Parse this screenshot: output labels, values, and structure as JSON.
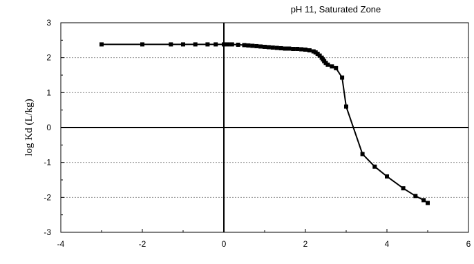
{
  "chart_data": {
    "type": "line",
    "title": "pH 11, Saturated Zone",
    "xlabel": "",
    "ylabel": "log Kd (L/kg)",
    "xlim": [
      -4,
      6
    ],
    "ylim": [
      -3,
      3
    ],
    "x_ticks": [
      "-4",
      "-2",
      "0",
      "2",
      "4",
      "6"
    ],
    "y_ticks": [
      "3",
      "2",
      "1",
      "0",
      "-1",
      "-2",
      "-3"
    ],
    "grid": "horizontal dotted",
    "colors": {
      "line": "#000000",
      "marker": "#000000",
      "grid": "#808080"
    },
    "series": [
      {
        "marker": "square",
        "x": [
          -3.0,
          -2.0,
          -1.3,
          -1.0,
          -0.7,
          -0.4,
          -0.2,
          0.0,
          0.1,
          0.2,
          0.35,
          0.5,
          0.6,
          0.7,
          0.8,
          0.9,
          1.0,
          1.1,
          1.2,
          1.3,
          1.4,
          1.5,
          1.6,
          1.7,
          1.8,
          1.9,
          2.0,
          2.1,
          2.2,
          2.25,
          2.3,
          2.35,
          2.4,
          2.43,
          2.46,
          2.5,
          2.55,
          2.65,
          2.75,
          2.9,
          3.0,
          3.4,
          3.7,
          4.0,
          4.4,
          4.7,
          4.9,
          5.0
        ],
        "y": [
          2.38,
          2.38,
          2.38,
          2.38,
          2.38,
          2.38,
          2.38,
          2.38,
          2.38,
          2.38,
          2.37,
          2.36,
          2.35,
          2.34,
          2.33,
          2.32,
          2.31,
          2.3,
          2.29,
          2.28,
          2.27,
          2.26,
          2.26,
          2.25,
          2.25,
          2.24,
          2.23,
          2.21,
          2.18,
          2.15,
          2.11,
          2.06,
          2.0,
          1.95,
          1.9,
          1.85,
          1.8,
          1.75,
          1.7,
          1.43,
          0.6,
          -0.76,
          -1.12,
          -1.4,
          -1.74,
          -1.96,
          -2.08,
          -2.16
        ]
      }
    ]
  }
}
